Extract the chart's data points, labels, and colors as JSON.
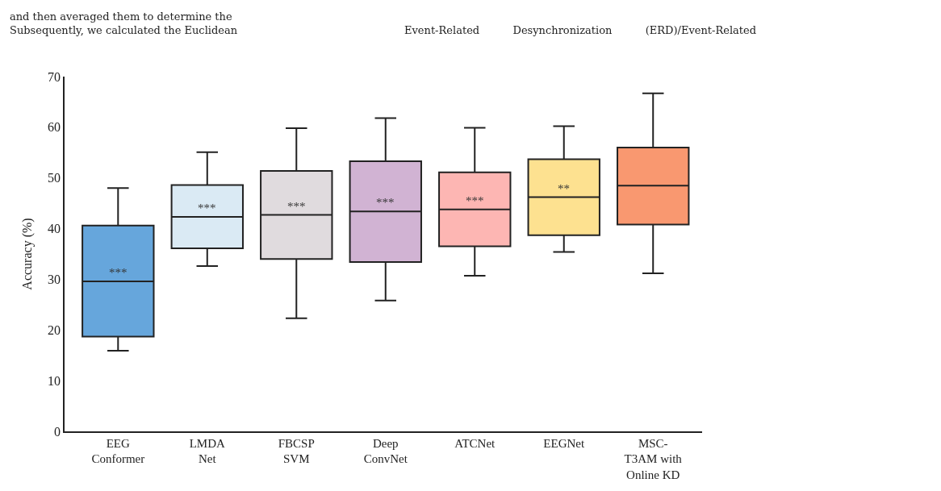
{
  "chart_data": {
    "type": "box",
    "ylabel": "Accuracy (%)",
    "categories": [
      "EEG\nConformer",
      "LMDA\nNet",
      "FBCSP\nSVM",
      "Deep\nConvNet",
      "ATCNet",
      "EEGNet",
      "MSC-\nT3AM with\nOnline KD"
    ],
    "boxes": [
      {
        "low": 15.9,
        "q1": 18.7,
        "median": 29.6,
        "q3": 40.6,
        "high": 48.0
      },
      {
        "low": 32.6,
        "q1": 36.1,
        "median": 42.3,
        "q3": 48.6,
        "high": 55.1
      },
      {
        "low": 22.3,
        "q1": 34.0,
        "median": 42.7,
        "q3": 51.4,
        "high": 59.8
      },
      {
        "low": 25.8,
        "q1": 33.4,
        "median": 43.4,
        "q3": 53.3,
        "high": 61.8
      },
      {
        "low": 30.7,
        "q1": 36.5,
        "median": 43.8,
        "q3": 51.1,
        "high": 59.9
      },
      {
        "low": 35.4,
        "q1": 38.7,
        "median": 46.2,
        "q3": 53.7,
        "high": 60.2
      },
      {
        "low": 31.2,
        "q1": 40.8,
        "median": 48.5,
        "q3": 56.0,
        "high": 66.7
      }
    ],
    "colors": [
      "#66a6dc",
      "#daeaf4",
      "#e0dbde",
      "#d1b3d3",
      "#fdb6b3",
      "#fde190",
      "#f99870"
    ],
    "ylim": [
      0,
      70
    ],
    "yticks": [
      0,
      10,
      20,
      30,
      40,
      50,
      60,
      70
    ],
    "annotations": [
      "***",
      "***",
      "***",
      "***",
      "***",
      "**",
      "and then averaged them to determine the\nSubsequently, we calculated the Euclidean",
      "Event-Related          Desynchronization          (ERD)/Event-Related"
    ]
  }
}
